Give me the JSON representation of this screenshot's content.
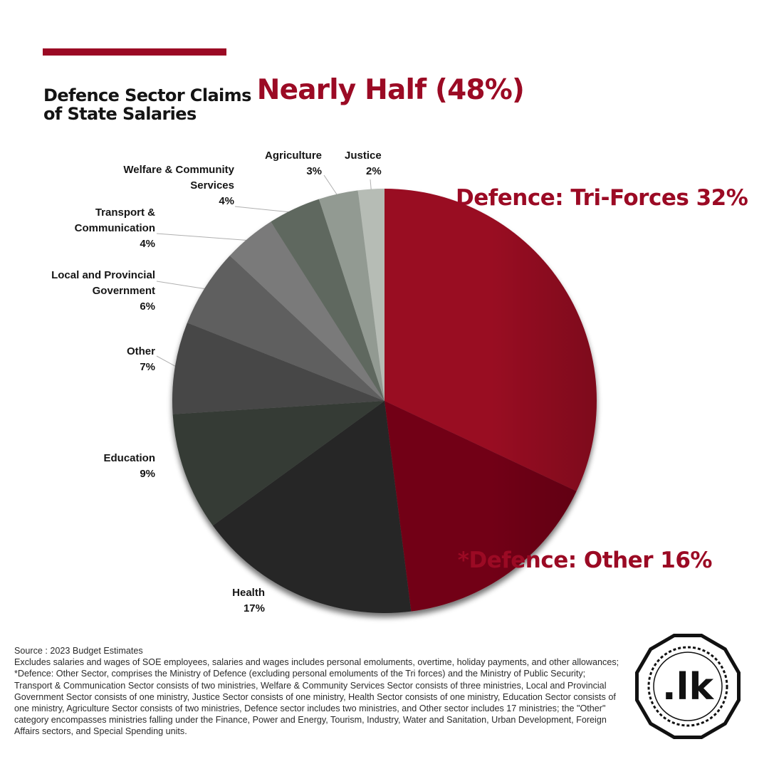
{
  "title": {
    "part1": "Defence Sector Claims",
    "highlight": "Nearly Half (48%)",
    "line2": "of State Salaries"
  },
  "chart_data": {
    "type": "pie",
    "start_angle_deg": 0,
    "direction": "clockwise",
    "slices": [
      {
        "label": "Defence: Tri-Forces",
        "value": 32,
        "value_label": "32%",
        "color": "#990a24"
      },
      {
        "label": "*Defence: Other",
        "value": 16,
        "value_label": "16%",
        "color": "#720616"
      },
      {
        "label": "Health",
        "value": 17,
        "value_label": "17%",
        "color": "#262626"
      },
      {
        "label": "Education",
        "value": 9,
        "value_label": "9%",
        "color": "#343a34"
      },
      {
        "label": "Other",
        "value": 7,
        "value_label": "7%",
        "color": "#474747"
      },
      {
        "label": "Local and Provincial Government",
        "label_lines": [
          "Local and Provincial",
          "Government"
        ],
        "value": 6,
        "value_label": "6%",
        "color": "#5e5e5e"
      },
      {
        "label": "Transport & Communication",
        "label_lines": [
          "Transport &",
          "Communication"
        ],
        "value": 4,
        "value_label": "4%",
        "color": "#7a7a7a"
      },
      {
        "label": "Welfare & Community Services",
        "label_lines": [
          "Welfare & Community",
          "Services"
        ],
        "value": 4,
        "value_label": "4%",
        "color": "#5f675f"
      },
      {
        "label": "Agriculture",
        "value": 3,
        "value_label": "3%",
        "color": "#929a92"
      },
      {
        "label": "Justice",
        "value": 2,
        "value_label": "2%",
        "color": "#b6bcb5"
      }
    ]
  },
  "footer": {
    "source": "Source : 2023 Budget Estimates",
    "notes": "Excludes salaries and wages of SOE employees, salaries and wages includes personal emoluments, overtime, holiday payments, and other allowances; *Defence: Other Sector, comprises the Ministry of Defence (excluding personal emoluments of the Tri forces) and the Ministry of Public Security; Transport & Communication Sector consists of two ministries, Welfare & Community Services Sector consists of three ministries, Local and Provincial Government Sector consists of one ministry, Justice Sector consists of one ministry, Health Sector consists of one ministry, Education Sector consists of one ministry, Agriculture Sector consists of two ministries, Defence sector includes two ministries, and Other sector includes 17 ministries; the \"Other\" category encompasses ministries falling under the Finance, Power and Energy, Tourism, Industry, Water and Sanitation, Urban Development, Foreign Affairs sectors, and Special Spending units."
  },
  "logo": {
    "text": ".lk",
    "icon": "lk-badge-icon"
  }
}
